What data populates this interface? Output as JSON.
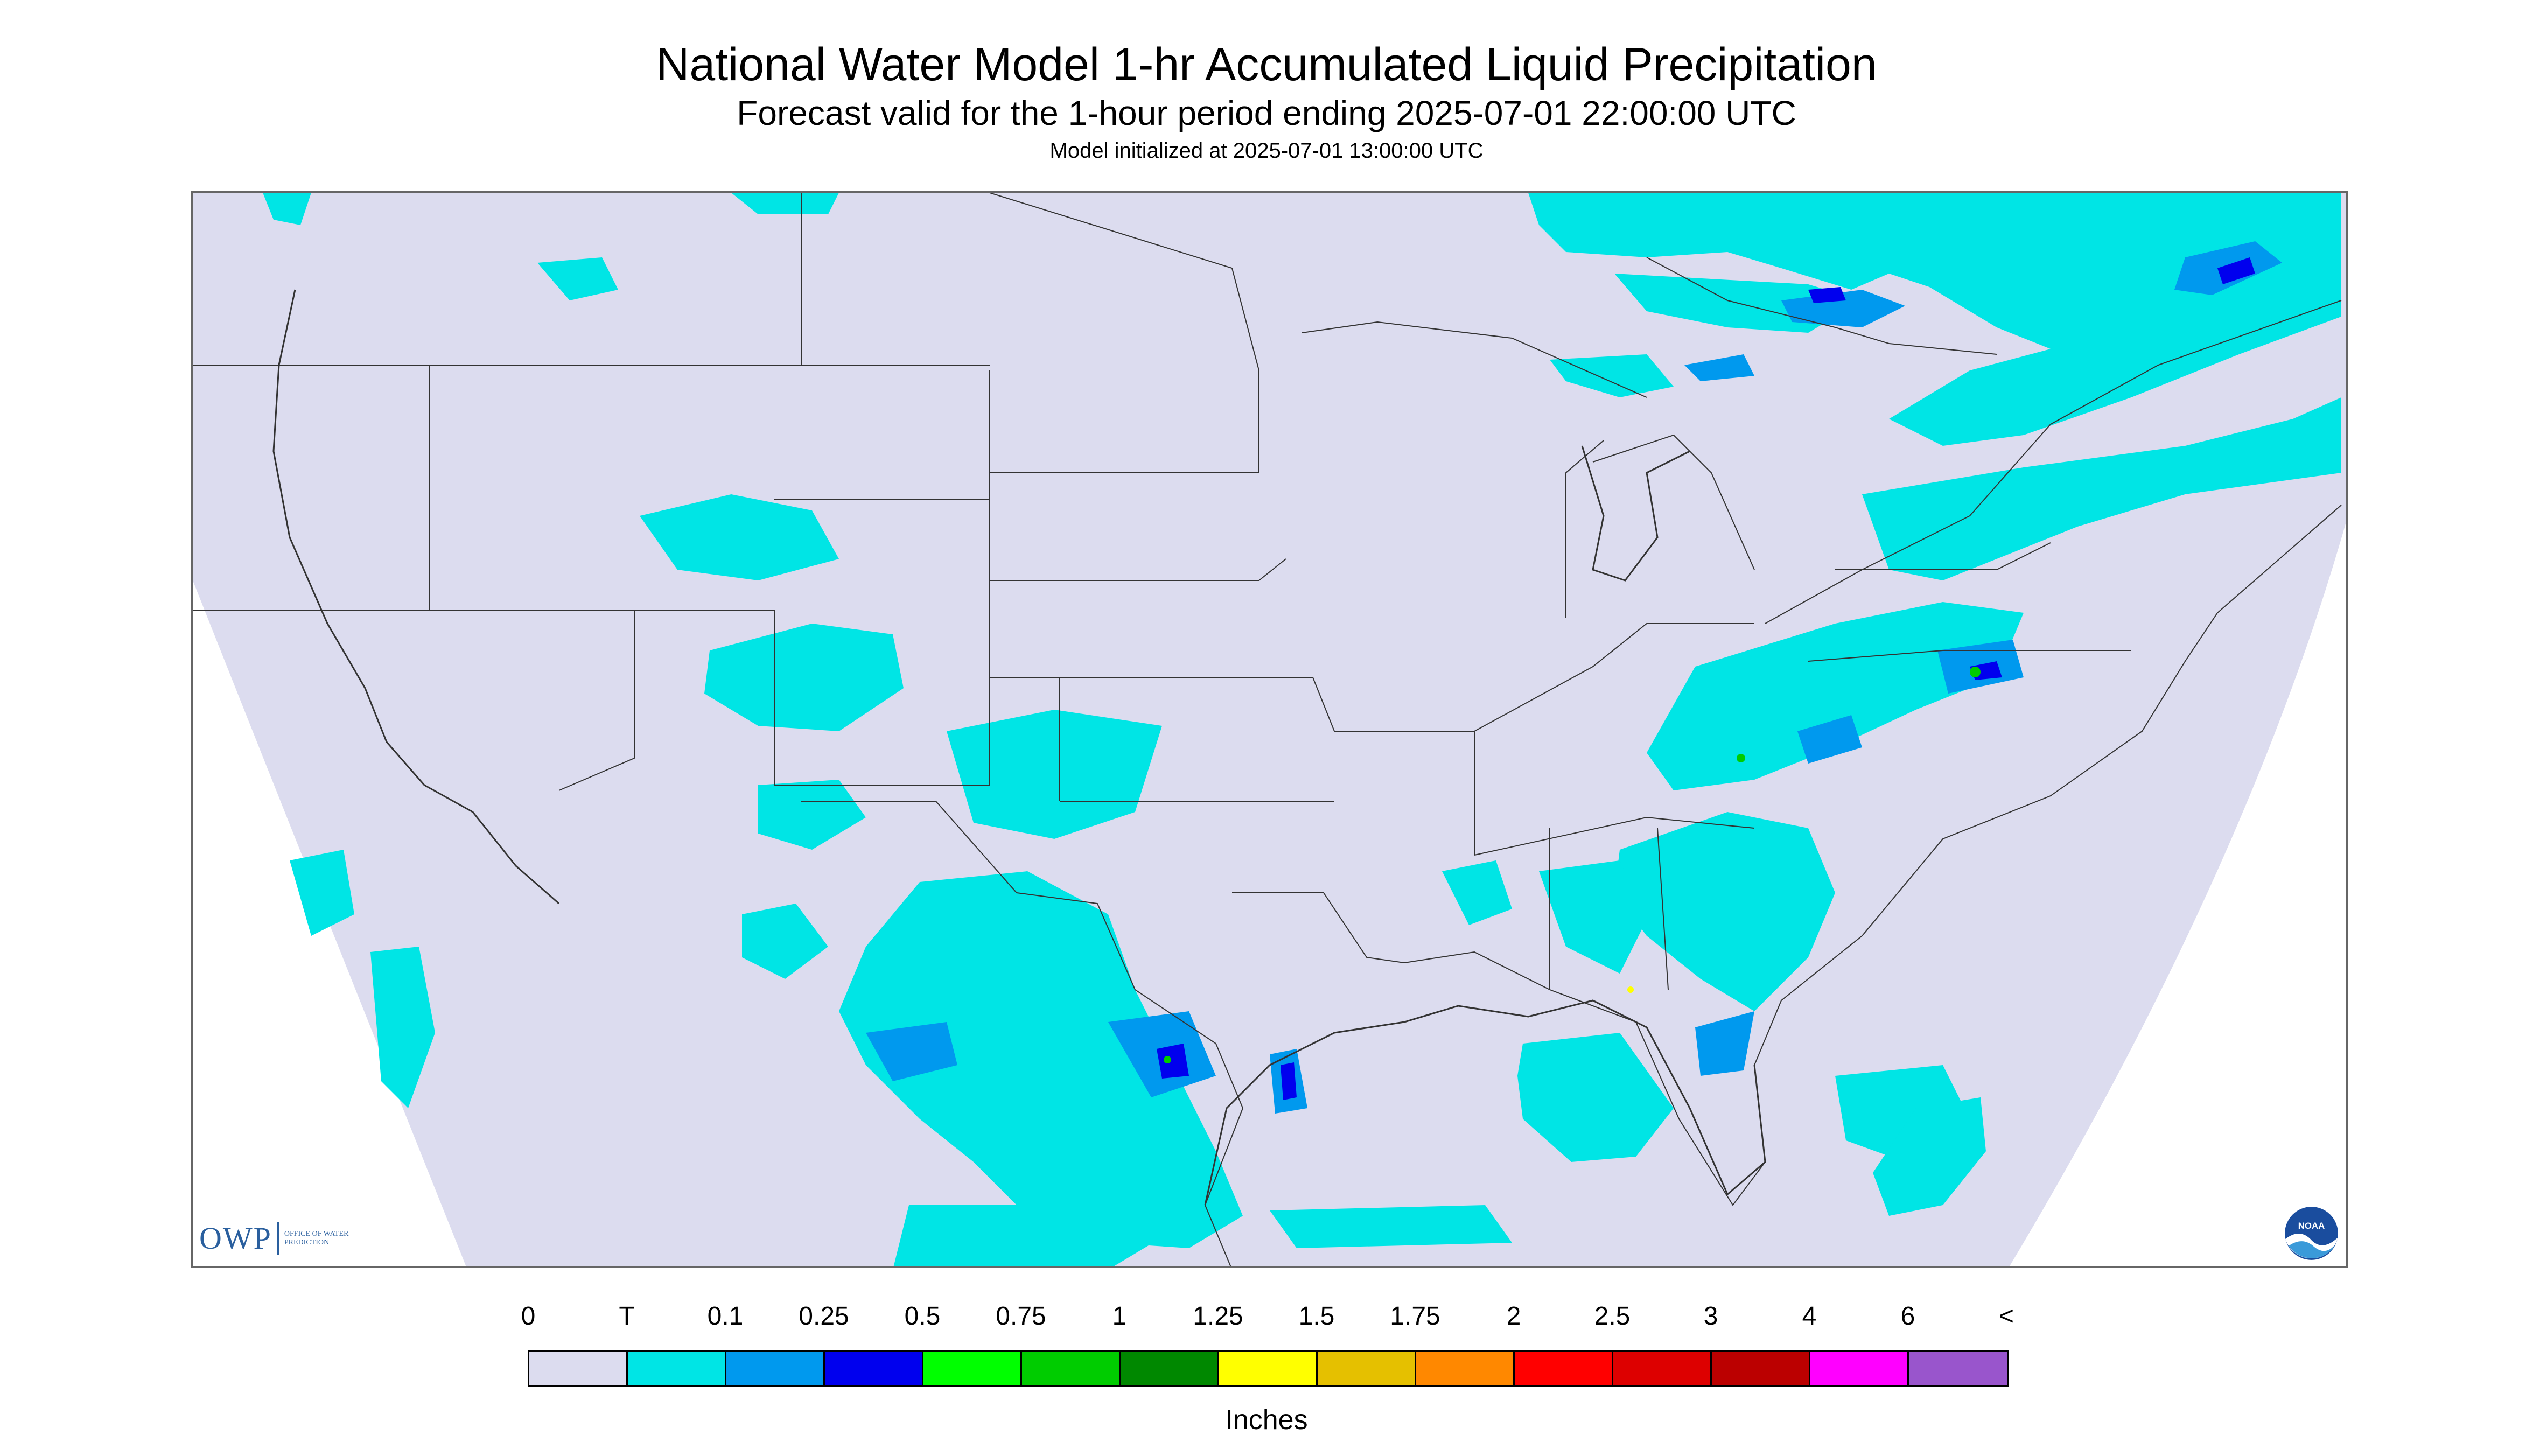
{
  "header": {
    "title": "National Water Model 1-hr Accumulated Liquid Precipitation",
    "subtitle": "Forecast valid for the 1-hour period ending 2025-07-01 22:00:00 UTC",
    "initialized": "Model initialized at 2025-07-01 13:00:00 UTC"
  },
  "map": {
    "background_color": "#dcdcef",
    "outside_color": "#ffffff",
    "border_color": "#333333",
    "logos": {
      "owp_mark": "OWP",
      "owp_text": "Office of Water Prediction",
      "noaa_mark": "NOAA"
    }
  },
  "legend": {
    "units": "Inches",
    "labels": [
      "0",
      "T",
      "0.1",
      "0.25",
      "0.5",
      "0.75",
      "1",
      "1.25",
      "1.5",
      "1.75",
      "2",
      "2.5",
      "3",
      "4",
      "6",
      "<"
    ],
    "colors": [
      "#dcdcef",
      "#00e5e5",
      "#0099ee",
      "#0000ee",
      "#00ff00",
      "#00cc00",
      "#008800",
      "#ffff00",
      "#e5c000",
      "#ff8800",
      "#ff0000",
      "#dd0000",
      "#bb0000",
      "#ff00ff",
      "#9955cc"
    ]
  }
}
